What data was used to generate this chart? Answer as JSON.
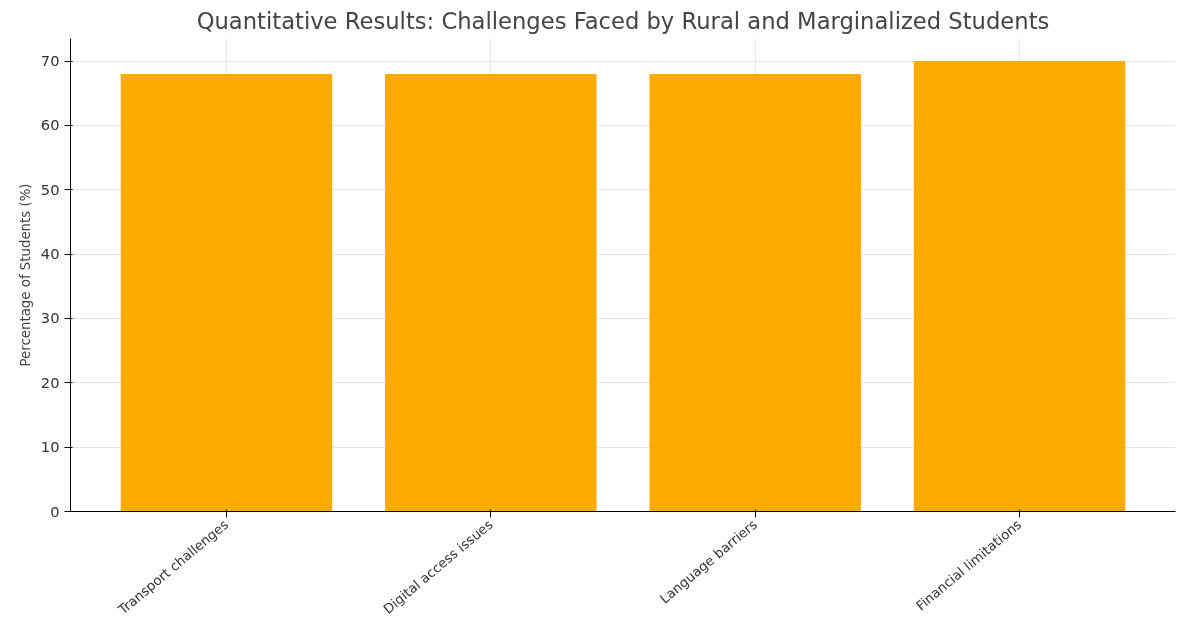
{
  "chart_data": {
    "type": "bar",
    "title": "Quantitative Results: Challenges Faced by Rural and Marginalized Students",
    "ylabel": "Percentage of Students (%)",
    "categories": [
      "Transport challenges",
      "Digital access issues",
      "Language barriers",
      "Financial limitations"
    ],
    "values": [
      68,
      68,
      68,
      70
    ],
    "color": "#fbab00",
    "ylim": [
      0,
      73.5
    ],
    "yticks": [
      0,
      10,
      20,
      30,
      40,
      50,
      60,
      70
    ],
    "grid": true
  }
}
